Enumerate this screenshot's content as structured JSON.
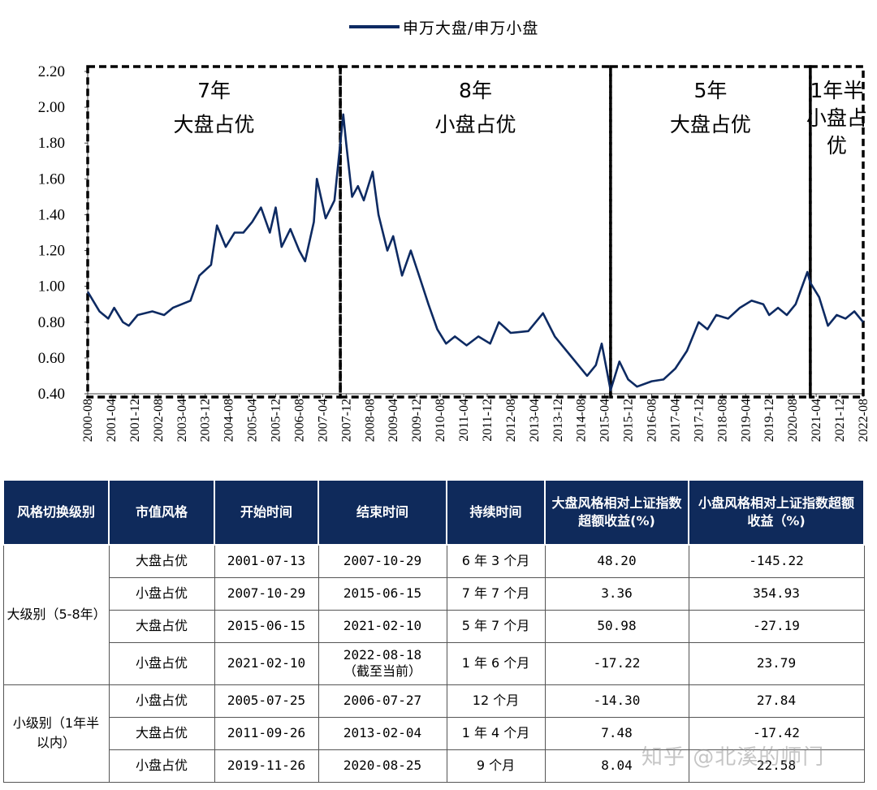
{
  "chart_data": {
    "type": "line",
    "series": [
      {
        "name": "申万大盘/申万小盘",
        "color": "#0d2a62"
      }
    ],
    "x_start": "2000-08",
    "x_end": "2022-08",
    "x_tick_labels": [
      "2000-08",
      "2001-04",
      "2001-12",
      "2002-08",
      "2003-04",
      "2003-12",
      "2004-08",
      "2005-04",
      "2005-12",
      "2006-08",
      "2007-04",
      "2007-12",
      "2008-08",
      "2009-04",
      "2009-12",
      "2010-08",
      "2011-04",
      "2011-12",
      "2012-08",
      "2013-04",
      "2013-12",
      "2014-08",
      "2015-04",
      "2015-12",
      "2016-08",
      "2017-04",
      "2017-12",
      "2018-08",
      "2019-04",
      "2019-12",
      "2020-08",
      "2021-04",
      "2021-12",
      "2022-08"
    ],
    "ylim": [
      0.4,
      2.2
    ],
    "y_tick_labels": [
      "2.20",
      "2.00",
      "1.80",
      "1.60",
      "1.40",
      "1.20",
      "1.00",
      "0.80",
      "0.60",
      "0.40"
    ],
    "points": [
      [
        "2000-08",
        0.97
      ],
      [
        "2000-12",
        0.86
      ],
      [
        "2001-03",
        0.82
      ],
      [
        "2001-05",
        0.88
      ],
      [
        "2001-08",
        0.8
      ],
      [
        "2001-10",
        0.78
      ],
      [
        "2002-01",
        0.84
      ],
      [
        "2002-06",
        0.86
      ],
      [
        "2002-10",
        0.84
      ],
      [
        "2003-01",
        0.88
      ],
      [
        "2003-04",
        0.9
      ],
      [
        "2003-07",
        0.92
      ],
      [
        "2003-10",
        1.06
      ],
      [
        "2004-02",
        1.12
      ],
      [
        "2004-04",
        1.34
      ],
      [
        "2004-07",
        1.22
      ],
      [
        "2004-10",
        1.3
      ],
      [
        "2005-01",
        1.3
      ],
      [
        "2005-04",
        1.36
      ],
      [
        "2005-07",
        1.44
      ],
      [
        "2005-10",
        1.3
      ],
      [
        "2005-12",
        1.44
      ],
      [
        "2006-02",
        1.22
      ],
      [
        "2006-05",
        1.32
      ],
      [
        "2006-08",
        1.2
      ],
      [
        "2006-10",
        1.14
      ],
      [
        "2007-01",
        1.36
      ],
      [
        "2007-02",
        1.6
      ],
      [
        "2007-05",
        1.38
      ],
      [
        "2007-08",
        1.48
      ],
      [
        "2007-11",
        1.96
      ],
      [
        "2007-12",
        1.8
      ],
      [
        "2008-02",
        1.5
      ],
      [
        "2008-04",
        1.56
      ],
      [
        "2008-06",
        1.48
      ],
      [
        "2008-09",
        1.64
      ],
      [
        "2008-11",
        1.4
      ],
      [
        "2009-02",
        1.2
      ],
      [
        "2009-04",
        1.28
      ],
      [
        "2009-07",
        1.06
      ],
      [
        "2009-10",
        1.2
      ],
      [
        "2010-01",
        1.05
      ],
      [
        "2010-04",
        0.9
      ],
      [
        "2010-07",
        0.76
      ],
      [
        "2010-10",
        0.68
      ],
      [
        "2011-01",
        0.72
      ],
      [
        "2011-05",
        0.67
      ],
      [
        "2011-09",
        0.72
      ],
      [
        "2012-01",
        0.68
      ],
      [
        "2012-04",
        0.8
      ],
      [
        "2012-08",
        0.74
      ],
      [
        "2013-02",
        0.75
      ],
      [
        "2013-07",
        0.85
      ],
      [
        "2013-11",
        0.72
      ],
      [
        "2014-04",
        0.62
      ],
      [
        "2014-08",
        0.54
      ],
      [
        "2014-10",
        0.5
      ],
      [
        "2015-01",
        0.56
      ],
      [
        "2015-03",
        0.68
      ],
      [
        "2015-06",
        0.42
      ],
      [
        "2015-09",
        0.58
      ],
      [
        "2015-12",
        0.48
      ],
      [
        "2016-03",
        0.44
      ],
      [
        "2016-08",
        0.47
      ],
      [
        "2016-12",
        0.48
      ],
      [
        "2017-04",
        0.54
      ],
      [
        "2017-08",
        0.64
      ],
      [
        "2017-12",
        0.8
      ],
      [
        "2018-03",
        0.76
      ],
      [
        "2018-06",
        0.84
      ],
      [
        "2018-10",
        0.82
      ],
      [
        "2019-02",
        0.88
      ],
      [
        "2019-06",
        0.92
      ],
      [
        "2019-10",
        0.9
      ],
      [
        "2019-12",
        0.84
      ],
      [
        "2020-03",
        0.88
      ],
      [
        "2020-06",
        0.84
      ],
      [
        "2020-09",
        0.9
      ],
      [
        "2021-01",
        1.08
      ],
      [
        "2021-02",
        1.02
      ],
      [
        "2021-05",
        0.94
      ],
      [
        "2021-08",
        0.78
      ],
      [
        "2021-11",
        0.84
      ],
      [
        "2022-02",
        0.82
      ],
      [
        "2022-05",
        0.86
      ],
      [
        "2022-08",
        0.8
      ]
    ],
    "regions": [
      {
        "start": "2000-08",
        "end": "2007-10",
        "label_line1": "7年",
        "label_line2": "大盘占优"
      },
      {
        "start": "2007-10",
        "end": "2015-06",
        "label_line1": "8年",
        "label_line2": "小盘占优"
      },
      {
        "start": "2015-06",
        "end": "2021-02",
        "label_line1": "5年",
        "label_line2": "大盘占优"
      },
      {
        "start": "2021-02",
        "end": "2022-08",
        "label_line1": "1年半",
        "label_line2": "小盘占",
        "label_line3": "优"
      }
    ]
  },
  "table": {
    "headers": [
      "风格切换级别",
      "市值风格",
      "开始时间",
      "结束时间",
      "持续时间",
      "大盘风格相对上证指数超额收益(%)",
      "小盘风格相对上证指数超额收益（%)"
    ],
    "groups": [
      {
        "label": "大级别（5-8年）",
        "rows": [
          {
            "style": "大盘占优",
            "start": "2001-07-13",
            "end": "2007-10-29",
            "duration": "6 年 3 个月",
            "large_excess": "48.20",
            "small_excess": "-145.22"
          },
          {
            "style": "小盘占优",
            "start": "2007-10-29",
            "end": "2015-06-15",
            "duration": "7 年 7 个月",
            "large_excess": "3.36",
            "small_excess": "354.93"
          },
          {
            "style": "大盘占优",
            "start": "2015-06-15",
            "end": "2021-02-10",
            "duration": "5 年 7 个月",
            "large_excess": "50.98",
            "small_excess": "-27.19"
          },
          {
            "style": "小盘占优",
            "start": "2021-02-10",
            "end": "2022-08-18",
            "end_note": "（截至当前）",
            "duration": "1 年 6 个月",
            "large_excess": "-17.22",
            "small_excess": "23.79"
          }
        ]
      },
      {
        "label": "小级别（1年半以内）",
        "rows": [
          {
            "style": "小盘占优",
            "start": "2005-07-25",
            "end": "2006-07-27",
            "duration": "12 个月",
            "large_excess": "-14.30",
            "small_excess": "27.84"
          },
          {
            "style": "大盘占优",
            "start": "2011-09-26",
            "end": "2013-02-04",
            "duration": "1 年 4 个月",
            "large_excess": "7.48",
            "small_excess": "-17.42"
          },
          {
            "style": "小盘占优",
            "start": "2019-11-26",
            "end": "2020-08-25",
            "duration": "9 个月",
            "large_excess": "8.04",
            "small_excess": "22.58"
          }
        ]
      }
    ]
  },
  "watermark": "知乎 @北溪的师门"
}
